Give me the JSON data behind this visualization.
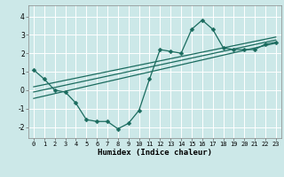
{
  "title": "",
  "xlabel": "Humidex (Indice chaleur)",
  "ylabel": "",
  "background_color": "#cce8e8",
  "grid_color": "#ffffff",
  "line_color": "#1a6b5e",
  "xlim": [
    -0.5,
    23.5
  ],
  "ylim": [
    -2.6,
    4.6
  ],
  "xticks": [
    0,
    1,
    2,
    3,
    4,
    5,
    6,
    7,
    8,
    9,
    10,
    11,
    12,
    13,
    14,
    15,
    16,
    17,
    18,
    19,
    20,
    21,
    22,
    23
  ],
  "yticks": [
    -2,
    -1,
    0,
    1,
    2,
    3,
    4
  ],
  "data_line": [
    [
      0,
      1.1
    ],
    [
      1,
      0.6
    ],
    [
      2,
      0.0
    ],
    [
      3,
      -0.1
    ],
    [
      4,
      -0.7
    ],
    [
      5,
      -1.6
    ],
    [
      6,
      -1.7
    ],
    [
      7,
      -1.7
    ],
    [
      8,
      -2.1
    ],
    [
      9,
      -1.8
    ],
    [
      10,
      -1.1
    ],
    [
      11,
      0.6
    ],
    [
      12,
      2.2
    ],
    [
      13,
      2.1
    ],
    [
      14,
      2.0
    ],
    [
      15,
      3.3
    ],
    [
      16,
      3.8
    ],
    [
      17,
      3.3
    ],
    [
      18,
      2.3
    ],
    [
      19,
      2.2
    ],
    [
      20,
      2.2
    ],
    [
      21,
      2.2
    ],
    [
      22,
      2.5
    ],
    [
      23,
      2.6
    ]
  ],
  "regression_lines": [
    [
      [
        0,
        -0.45
      ],
      [
        23,
        2.55
      ]
    ],
    [
      [
        0,
        -0.1
      ],
      [
        23,
        2.72
      ]
    ],
    [
      [
        0,
        0.18
      ],
      [
        23,
        2.88
      ]
    ]
  ],
  "tick_fontsize": 5.0,
  "xlabel_fontsize": 6.5,
  "marker_size": 2.5,
  "line_width": 0.9
}
